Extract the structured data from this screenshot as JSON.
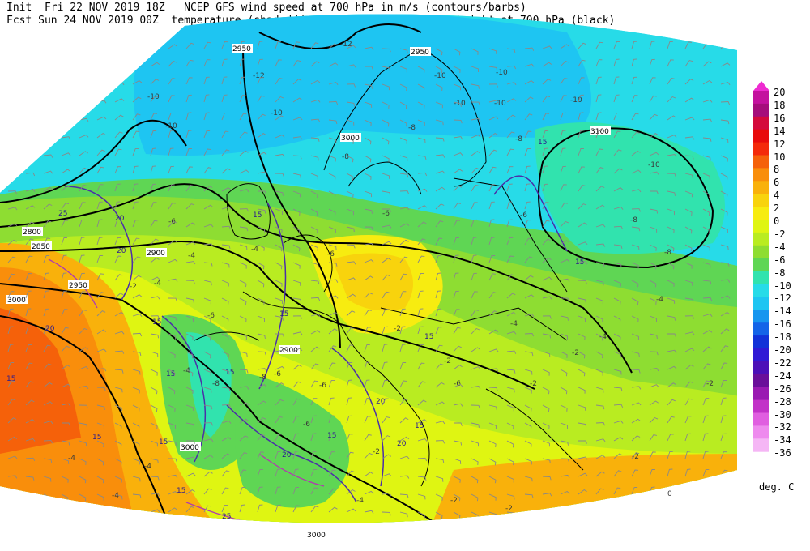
{
  "header": {
    "line1": "Init  Fri 22 NOV 2019 18Z   NCEP GFS wind speed at 700 hPa in m/s (contours/barbs)",
    "line2": "Fcst Sun 24 NOV 2019 00Z  temperature (shaded/dotted) and geopotential height at 700 hPa (black)"
  },
  "colorbar": {
    "labels": [
      "20",
      "18",
      "16",
      "14",
      "12",
      "10",
      "8",
      "6",
      "4",
      "2",
      "0",
      "-2",
      "-4",
      "-6",
      "-8",
      "-10",
      "-12",
      "-14",
      "-16",
      "-18",
      "-20",
      "-22",
      "-24",
      "-26",
      "-28",
      "-30",
      "-32",
      "-34",
      "-36"
    ],
    "colors": [
      "#ee2bd0",
      "#c4119e",
      "#a50d7b",
      "#d40a3c",
      "#e80b0b",
      "#f42a0a",
      "#f5610a",
      "#f98e0b",
      "#f9b10b",
      "#f8d30d",
      "#f7ec10",
      "#dff512",
      "#b9ec21",
      "#8edd32",
      "#5fd654",
      "#31e3ae",
      "#27dbe8",
      "#1ec5f2",
      "#1796ef",
      "#1464e8",
      "#1232d8",
      "#301ad5",
      "#4c10b8",
      "#6a0f9a",
      "#9a1ab2",
      "#c232c8",
      "#e05ee0",
      "#ee8aee",
      "#f5b6f5"
    ],
    "units": "deg. C"
  },
  "map": {
    "height_labels": [
      "2950",
      "2950",
      "3100",
      "2800",
      "2850",
      "2900",
      "2950",
      "3000",
      "2900",
      "3000",
      "3000",
      "3000"
    ],
    "wind_labels": [
      "15",
      "15",
      "15",
      "15",
      "15",
      "15",
      "15",
      "15",
      "15",
      "15",
      "15",
      "20",
      "20",
      "20",
      "20",
      "20",
      "20",
      "25",
      "25",
      "15",
      "15",
      "15"
    ],
    "temp_labels": [
      "-12",
      "-12",
      "-10",
      "-10",
      "-10",
      "-10",
      "-10",
      "-10",
      "-8",
      "-8",
      "-8",
      "-8",
      "-8",
      "-6",
      "-6",
      "-4",
      "-4",
      "-4",
      "-4",
      "-4",
      "-2",
      "-2",
      "-2",
      "-6",
      "-2",
      "-4",
      "-2",
      "-6",
      "-8",
      "-10",
      "-10",
      "-10",
      "-6",
      "-6",
      "-4",
      "-4",
      "-2",
      "0",
      "-8",
      "-6",
      "-4",
      "-2",
      "-2",
      "-2",
      "-2",
      "-4",
      "-4",
      "-6",
      "-6"
    ]
  }
}
